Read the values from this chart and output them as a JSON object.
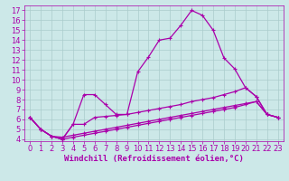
{
  "title": "",
  "xlabel": "Windchill (Refroidissement éolien,°C)",
  "ylabel": "",
  "background_color": "#cce8e8",
  "grid_color": "#aacccc",
  "line_color": "#aa00aa",
  "xlim": [
    -0.5,
    23.5
  ],
  "ylim": [
    3.8,
    17.5
  ],
  "xticks": [
    0,
    1,
    2,
    3,
    4,
    5,
    6,
    7,
    8,
    9,
    10,
    11,
    12,
    13,
    14,
    15,
    16,
    17,
    18,
    19,
    20,
    21,
    22,
    23
  ],
  "yticks": [
    4,
    5,
    6,
    7,
    8,
    9,
    10,
    11,
    12,
    13,
    14,
    15,
    16,
    17
  ],
  "lines": [
    [
      6.2,
      5.0,
      4.3,
      4.0,
      5.5,
      8.5,
      8.5,
      7.5,
      6.5,
      6.5,
      10.8,
      12.3,
      14.0,
      14.2,
      15.5,
      17.0,
      16.5,
      15.0,
      12.2,
      11.1,
      9.2,
      8.3,
      6.5,
      6.2
    ],
    [
      6.2,
      5.0,
      4.3,
      4.0,
      5.5,
      5.5,
      6.2,
      6.3,
      6.4,
      6.5,
      6.7,
      6.9,
      7.1,
      7.3,
      7.5,
      7.8,
      8.0,
      8.2,
      8.5,
      8.8,
      9.2,
      8.3,
      6.5,
      6.2
    ],
    [
      6.2,
      5.0,
      4.3,
      4.0,
      4.2,
      4.4,
      4.6,
      4.8,
      5.0,
      5.2,
      5.4,
      5.6,
      5.8,
      6.0,
      6.2,
      6.4,
      6.6,
      6.8,
      7.0,
      7.2,
      7.5,
      7.8,
      6.5,
      6.2
    ],
    [
      6.2,
      5.0,
      4.3,
      4.2,
      4.4,
      4.6,
      4.8,
      5.0,
      5.2,
      5.4,
      5.6,
      5.8,
      6.0,
      6.2,
      6.4,
      6.6,
      6.8,
      7.0,
      7.2,
      7.4,
      7.6,
      7.8,
      6.5,
      6.2
    ]
  ],
  "tick_fontsize": 6,
  "xlabel_fontsize": 6.5,
  "marker_size": 3,
  "linewidth": 0.9
}
